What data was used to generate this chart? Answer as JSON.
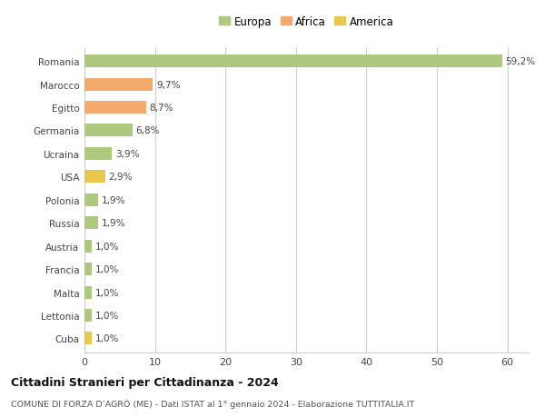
{
  "categories": [
    "Romania",
    "Marocco",
    "Egitto",
    "Germania",
    "Ucraina",
    "USA",
    "Polonia",
    "Russia",
    "Austria",
    "Francia",
    "Malta",
    "Lettonia",
    "Cuba"
  ],
  "values": [
    59.2,
    9.7,
    8.7,
    6.8,
    3.9,
    2.9,
    1.9,
    1.9,
    1.0,
    1.0,
    1.0,
    1.0,
    1.0
  ],
  "labels": [
    "59,2%",
    "9,7%",
    "8,7%",
    "6,8%",
    "3,9%",
    "2,9%",
    "1,9%",
    "1,9%",
    "1,0%",
    "1,0%",
    "1,0%",
    "1,0%",
    "1,0%"
  ],
  "colors": [
    "#adc97e",
    "#f4a96d",
    "#f4a96d",
    "#adc97e",
    "#adc97e",
    "#e8c84a",
    "#adc97e",
    "#adc97e",
    "#adc97e",
    "#adc97e",
    "#adc97e",
    "#adc97e",
    "#e8c84a"
  ],
  "legend_labels": [
    "Europa",
    "Africa",
    "America"
  ],
  "legend_colors": [
    "#adc97e",
    "#f4a96d",
    "#e8c84a"
  ],
  "title": "Cittadini Stranieri per Cittadinanza - 2024",
  "subtitle": "COMUNE DI FORZA D’AGRÒ (ME) - Dati ISTAT al 1° gennaio 2024 - Elaborazione TUTTITALIA.IT",
  "xlim": [
    0,
    63
  ],
  "xticks": [
    0,
    10,
    20,
    30,
    40,
    50,
    60
  ],
  "background_color": "#ffffff",
  "grid_color": "#cccccc",
  "bar_height": 0.55
}
